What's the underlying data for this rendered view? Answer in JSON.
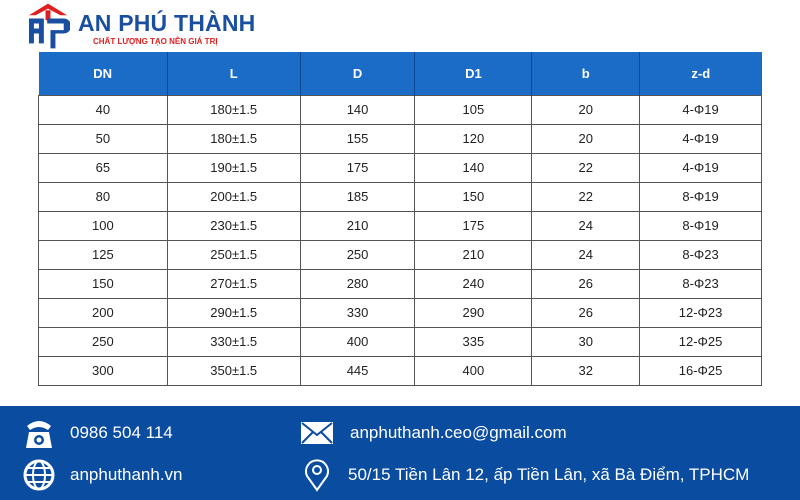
{
  "brand": {
    "name": "AN PHÚ THÀNH",
    "slogan": "CHẤT LƯỢNG TẠO NÊN GIÁ TRỊ",
    "colors": {
      "blue": "#1a4fa0",
      "red": "#e02020"
    }
  },
  "table": {
    "headers": [
      "DN",
      "L",
      "D",
      "D1",
      "b",
      "z-d"
    ],
    "rows": [
      [
        "40",
        "180±1.5",
        "140",
        "105",
        "20",
        "4-Φ19"
      ],
      [
        "50",
        "180±1.5",
        "155",
        "120",
        "20",
        "4-Φ19"
      ],
      [
        "65",
        "190±1.5",
        "175",
        "140",
        "22",
        "4-Φ19"
      ],
      [
        "80",
        "200±1.5",
        "185",
        "150",
        "22",
        "8-Φ19"
      ],
      [
        "100",
        "230±1.5",
        "210",
        "175",
        "24",
        "8-Φ19"
      ],
      [
        "125",
        "250±1.5",
        "250",
        "210",
        "24",
        "8-Φ23"
      ],
      [
        "150",
        "270±1.5",
        "280",
        "240",
        "26",
        "8-Φ23"
      ],
      [
        "200",
        "290±1.5",
        "330",
        "290",
        "26",
        "12-Φ23"
      ],
      [
        "250",
        "330±1.5",
        "400",
        "335",
        "30",
        "12-Φ25"
      ],
      [
        "300",
        "350±1.5",
        "445",
        "400",
        "32",
        "16-Φ25"
      ]
    ]
  },
  "footer": {
    "phone": "0986 504 114",
    "email": "anphuthanh.ceo@gmail.com",
    "website": "anphuthanh.vn",
    "address": "50/15 Tiền Lân 12, ấp Tiền Lân, xã Bà Điểm, TPHCM",
    "background": "#0a4c9f"
  }
}
